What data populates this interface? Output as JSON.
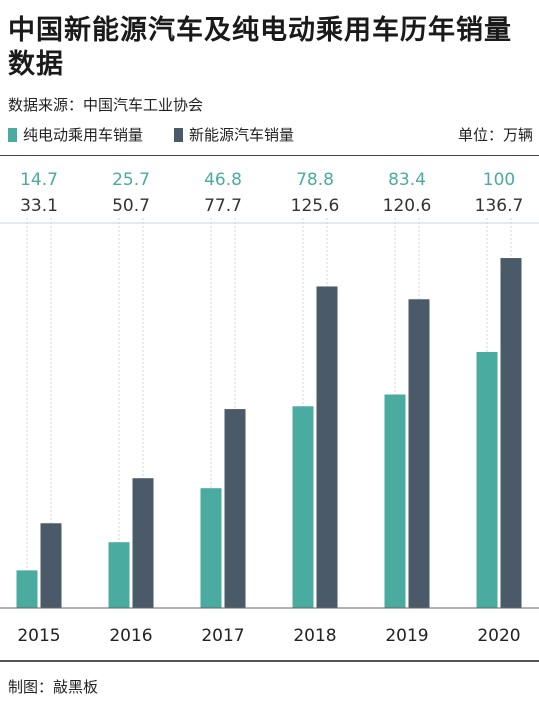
{
  "title": "中国新能源汽车及纯电动乘用车历年销量数据",
  "source": "数据来源：中国汽车工业协会",
  "unit": "单位：万辆",
  "credit": "制图：敲黑板",
  "colors": {
    "bev": "#4aaba0",
    "nev": "#4a5a69",
    "grid": "#c9d6e3",
    "axis": "#666666"
  },
  "chart_data": {
    "type": "bar",
    "categories": [
      "2015",
      "2016",
      "2017",
      "2018",
      "2019",
      "2020"
    ],
    "series": [
      {
        "name": "纯电动乘用车销量",
        "values": [
          14.7,
          25.7,
          46.8,
          78.8,
          83.4,
          100
        ]
      },
      {
        "name": "新能源汽车销量",
        "values": [
          33.1,
          50.7,
          77.7,
          125.6,
          120.6,
          136.7
        ]
      }
    ],
    "legend": "top-left",
    "grid": false
  }
}
